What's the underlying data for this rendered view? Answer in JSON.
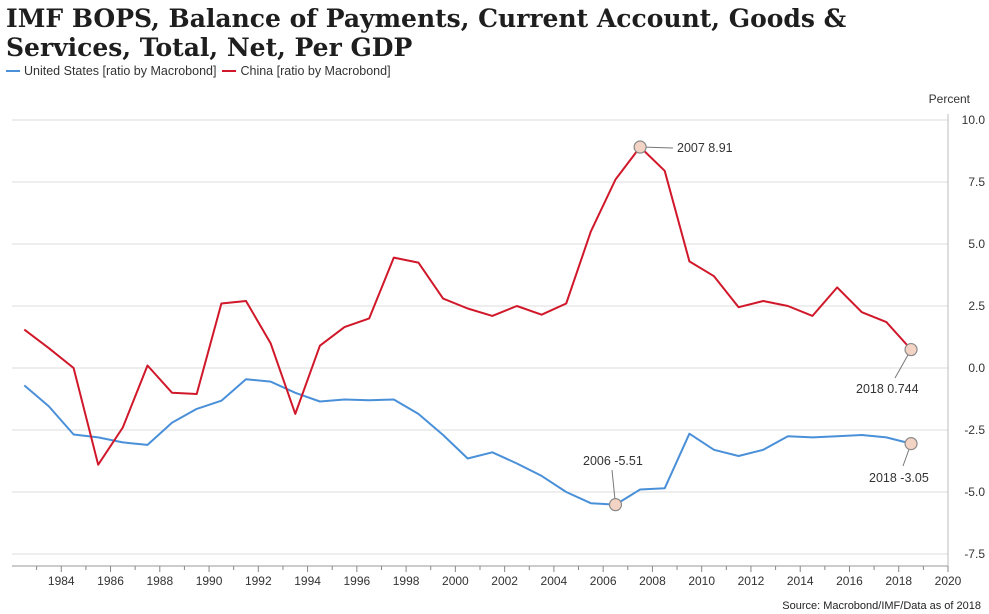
{
  "title": "IMF BOPS, Balance of Payments, Current Account, Goods & Services, Total, Net, Per GDP",
  "source": "Source: Macrobond/IMF/Data as of 2018",
  "colors": {
    "us": "#4a90d9",
    "china": "#d0182a",
    "grid": "#dcdcdc",
    "marker_fill": "#f3d3c4",
    "marker_stroke": "#8a8a8a"
  },
  "chart_data": {
    "type": "line",
    "title": "IMF BOPS, Balance of Payments, Current Account, Goods & Services, Total, Net, Per GDP",
    "ylabel": "Percent",
    "xlabel": "",
    "xlim": [
      1982,
      2020
    ],
    "ylim": [
      -8,
      10
    ],
    "x_ticks": [
      1984,
      1986,
      1988,
      1990,
      1992,
      1994,
      1996,
      1998,
      2000,
      2002,
      2004,
      2006,
      2008,
      2010,
      2012,
      2014,
      2016,
      2018,
      2020
    ],
    "y_ticks": [
      10.0,
      7.5,
      5.0,
      2.5,
      0.0,
      -2.5,
      -5.0,
      -7.5
    ],
    "y_tick_labels": [
      "10.0",
      "7.5",
      "5.0",
      "2.5",
      "0.0",
      "-2.5",
      "-5.0",
      "-7.5"
    ],
    "legend_position": "top-left",
    "series": [
      {
        "name": "United States [ratio by Macrobond]",
        "color": "#4a90d9",
        "x": [
          1982.5,
          1983.5,
          1984.5,
          1985.5,
          1986.5,
          1987.5,
          1988.5,
          1989.5,
          1990.5,
          1991.5,
          1992.5,
          1993.5,
          1994.5,
          1995.5,
          1996.5,
          1997.5,
          1998.5,
          1999.5,
          2000.5,
          2001.5,
          2002.5,
          2003.5,
          2004.5,
          2005.5,
          2006.5,
          2007.5,
          2008.5,
          2009.5,
          2010.5,
          2011.5,
          2012.5,
          2013.5,
          2014.5,
          2015.5,
          2016.5,
          2017.5,
          2018.5
        ],
        "values": [
          -0.7,
          -1.55,
          -2.68,
          -2.8,
          -3.0,
          -3.1,
          -2.2,
          -1.65,
          -1.32,
          -0.45,
          -0.55,
          -1.0,
          -1.35,
          -1.27,
          -1.3,
          -1.27,
          -1.85,
          -2.7,
          -3.65,
          -3.4,
          -3.85,
          -4.35,
          -5.0,
          -5.45,
          -5.51,
          -4.9,
          -4.85,
          -2.65,
          -3.3,
          -3.55,
          -3.3,
          -2.75,
          -2.8,
          -2.75,
          -2.7,
          -2.8,
          -3.05
        ]
      },
      {
        "name": "China [ratio by Macrobond]",
        "color": "#d0182a",
        "x": [
          1982.5,
          1983.5,
          1984.5,
          1985.5,
          1986.5,
          1987.5,
          1988.5,
          1989.5,
          1990.5,
          1991.5,
          1992.5,
          1993.5,
          1994.5,
          1995.5,
          1996.5,
          1997.5,
          1998.5,
          1999.5,
          2000.5,
          2001.5,
          2002.5,
          2003.5,
          2004.5,
          2005.5,
          2006.5,
          2007.5,
          2008.5,
          2009.5,
          2010.5,
          2011.5,
          2012.5,
          2013.5,
          2014.5,
          2015.5,
          2016.5,
          2017.5,
          2018.5
        ],
        "values": [
          1.55,
          0.8,
          0.0,
          -3.9,
          -2.4,
          0.1,
          -1.0,
          -1.05,
          2.6,
          2.7,
          1.0,
          -1.85,
          0.9,
          1.65,
          2.0,
          4.45,
          4.25,
          2.8,
          2.4,
          2.1,
          2.5,
          2.15,
          2.6,
          5.5,
          7.6,
          8.91,
          7.95,
          4.3,
          3.7,
          2.45,
          2.7,
          2.5,
          2.1,
          3.25,
          2.25,
          1.85,
          0.744
        ]
      }
    ],
    "annotations": [
      {
        "label": "2007 8.91",
        "x": 2007.5,
        "y": 8.91,
        "series": "China [ratio by Macrobond]"
      },
      {
        "label": "2018 0.744",
        "x": 2018.5,
        "y": 0.744,
        "series": "China [ratio by Macrobond]"
      },
      {
        "label": "2006 -5.51",
        "x": 2006.5,
        "y": -5.51,
        "series": "United States [ratio by Macrobond]"
      },
      {
        "label": "2018 -3.05",
        "x": 2018.5,
        "y": -3.05,
        "series": "United States [ratio by Macrobond]"
      }
    ]
  }
}
